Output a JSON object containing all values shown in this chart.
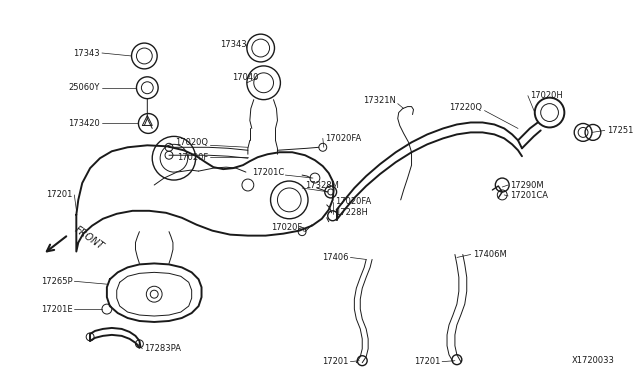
{
  "bg_color": "#ffffff",
  "line_color": "#1a1a1a",
  "label_color": "#1a1a1a",
  "diagram_number": "X1720033",
  "figsize": [
    6.4,
    3.72
  ],
  "dpi": 100,
  "xlim": [
    0,
    640
  ],
  "ylim": [
    0,
    372
  ]
}
